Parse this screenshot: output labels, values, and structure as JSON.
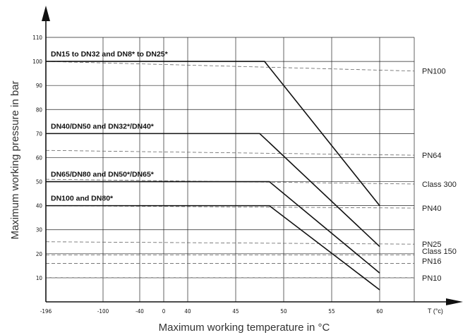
{
  "chart_data": {
    "type": "line",
    "xlabel": "Maximum working temperature in °C",
    "ylabel": "Maximum working pressure in bar",
    "x_unit_label": "T (°c)",
    "x_ticks": [
      "-196",
      "-100",
      "-40",
      "0",
      "40",
      "45",
      "50",
      "55",
      "60"
    ],
    "y_ticks": [
      "10",
      "20",
      "30",
      "40",
      "50",
      "60",
      "70",
      "80",
      "90",
      "100",
      "110"
    ],
    "ylim": [
      0,
      110
    ],
    "grid": true,
    "series": [
      {
        "name": "DN15 to DN32 and DN8* to DN25*",
        "points": [
          [
            "-196",
            100
          ],
          [
            "40",
            100
          ],
          [
            "48",
            100
          ],
          [
            "60",
            40
          ]
        ]
      },
      {
        "name": "DN40/DN50 and DN32*/DN40*",
        "points": [
          [
            "-196",
            70
          ],
          [
            "40",
            70
          ],
          [
            "47.5",
            70
          ],
          [
            "60",
            23
          ]
        ]
      },
      {
        "name": "DN65/DN80 and DN50*/DN65*",
        "points": [
          [
            "-196",
            50
          ],
          [
            "40",
            50
          ],
          [
            "48.5",
            50
          ],
          [
            "60",
            12
          ]
        ]
      },
      {
        "name": "DN100 and DN80*",
        "points": [
          [
            "-196",
            40
          ],
          [
            "40",
            40
          ],
          [
            "48.5",
            40
          ],
          [
            "60",
            5
          ]
        ]
      }
    ],
    "reference_lines": [
      {
        "name": "PN100",
        "y_start": 100,
        "y_end": 96
      },
      {
        "name": "PN64",
        "y_start": 63,
        "y_end": 61
      },
      {
        "name": "Class 300",
        "y_start": 51,
        "y_end": 49
      },
      {
        "name": "PN40",
        "y_start": 40,
        "y_end": 39
      },
      {
        "name": "PN25",
        "y_start": 25,
        "y_end": 24
      },
      {
        "name": "Class 150",
        "y_start": 19.5,
        "y_end": 19.5
      },
      {
        "name": "PN16",
        "y_start": 16,
        "y_end": 16
      },
      {
        "name": "PN10",
        "y_start": 10,
        "y_end": 10
      }
    ]
  }
}
